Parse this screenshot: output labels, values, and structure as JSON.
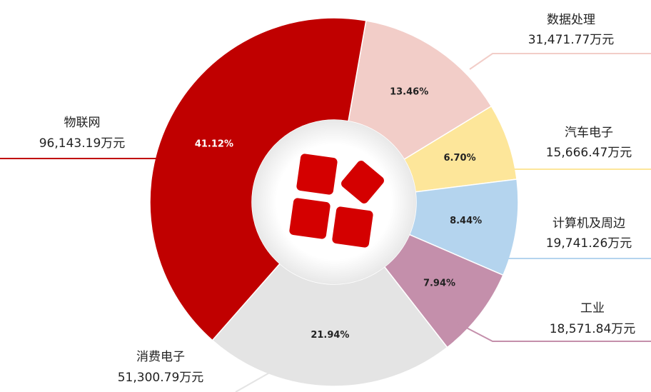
{
  "chart_data": {
    "type": "donut",
    "categories": [
      "数据处理",
      "汽车电子",
      "计算机及周边",
      "工业",
      "消费电子",
      "物联网"
    ],
    "values": [
      13.46,
      6.7,
      8.44,
      7.94,
      21.94,
      41.12
    ],
    "value_labels": [
      "13.46%",
      "6.70%",
      "8.44%",
      "7.94%",
      "21.94%",
      "41.12%"
    ],
    "amounts": [
      31471.77,
      15666.47,
      19741.26,
      18571.84,
      51300.79,
      96143.19
    ],
    "amount_labels": [
      "31,471.77万元",
      "15,666.47万元",
      "19,741.26万元",
      "18,571.84万元",
      "51,300.79万元",
      "96,143.19万元"
    ],
    "colors": [
      "#f2cdc8",
      "#fde69a",
      "#b4d4ee",
      "#c48fab",
      "#e4e4e4",
      "#c00000"
    ]
  }
}
